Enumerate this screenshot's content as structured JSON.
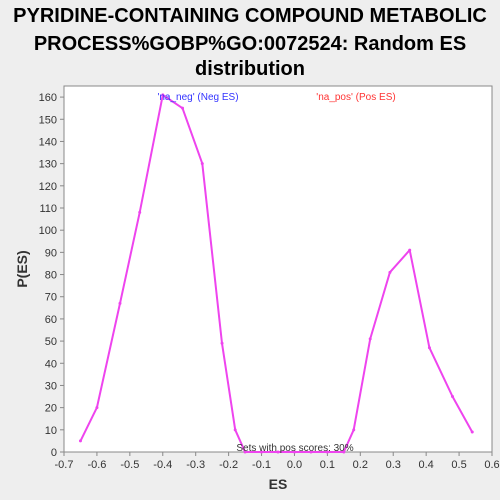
{
  "chart_data": {
    "type": "line",
    "title_lines": [
      "PYRIDINE-CONTAINING COMPOUND METABOLIC",
      "PROCESS%GOBP%GO:0072524: Random ES",
      "distribution"
    ],
    "xlabel": "ES",
    "ylabel": "P(ES)",
    "xlim": [
      -0.7,
      0.6
    ],
    "ylim": [
      0,
      165
    ],
    "x_ticks": [
      "-0.7",
      "-0.6",
      "-0.5",
      "-0.4",
      "-0.3",
      "-0.2",
      "-0.1",
      "0.0",
      "0.1",
      "0.2",
      "0.3",
      "0.4",
      "0.5",
      "0.6"
    ],
    "y_ticks": [
      "0",
      "10",
      "20",
      "30",
      "40",
      "50",
      "60",
      "70",
      "80",
      "90",
      "100",
      "110",
      "120",
      "130",
      "140",
      "150",
      "160"
    ],
    "grid": false,
    "series_color": "#ee44ee",
    "series": [
      {
        "x": [
          -0.65,
          -0.6,
          -0.53,
          -0.47,
          -0.4,
          -0.34,
          -0.28,
          -0.22,
          -0.18,
          -0.15,
          -0.1,
          -0.05,
          0.0,
          0.05,
          0.1,
          0.15,
          0.18,
          0.23,
          0.29,
          0.35,
          0.41,
          0.48,
          0.54
        ],
        "y": [
          5,
          20,
          67,
          108,
          161,
          155,
          130,
          49,
          10,
          0,
          0,
          0,
          0,
          0,
          0,
          0,
          10,
          51,
          81,
          91,
          47,
          25,
          9
        ]
      }
    ],
    "annotations": {
      "neg_label": "'na_neg' (Neg ES)",
      "neg_color": "#3333ff",
      "pos_label": "'na_pos' (Pos ES)",
      "pos_color": "#ff3333",
      "footer": "Sets with pos scores: 30%"
    }
  }
}
